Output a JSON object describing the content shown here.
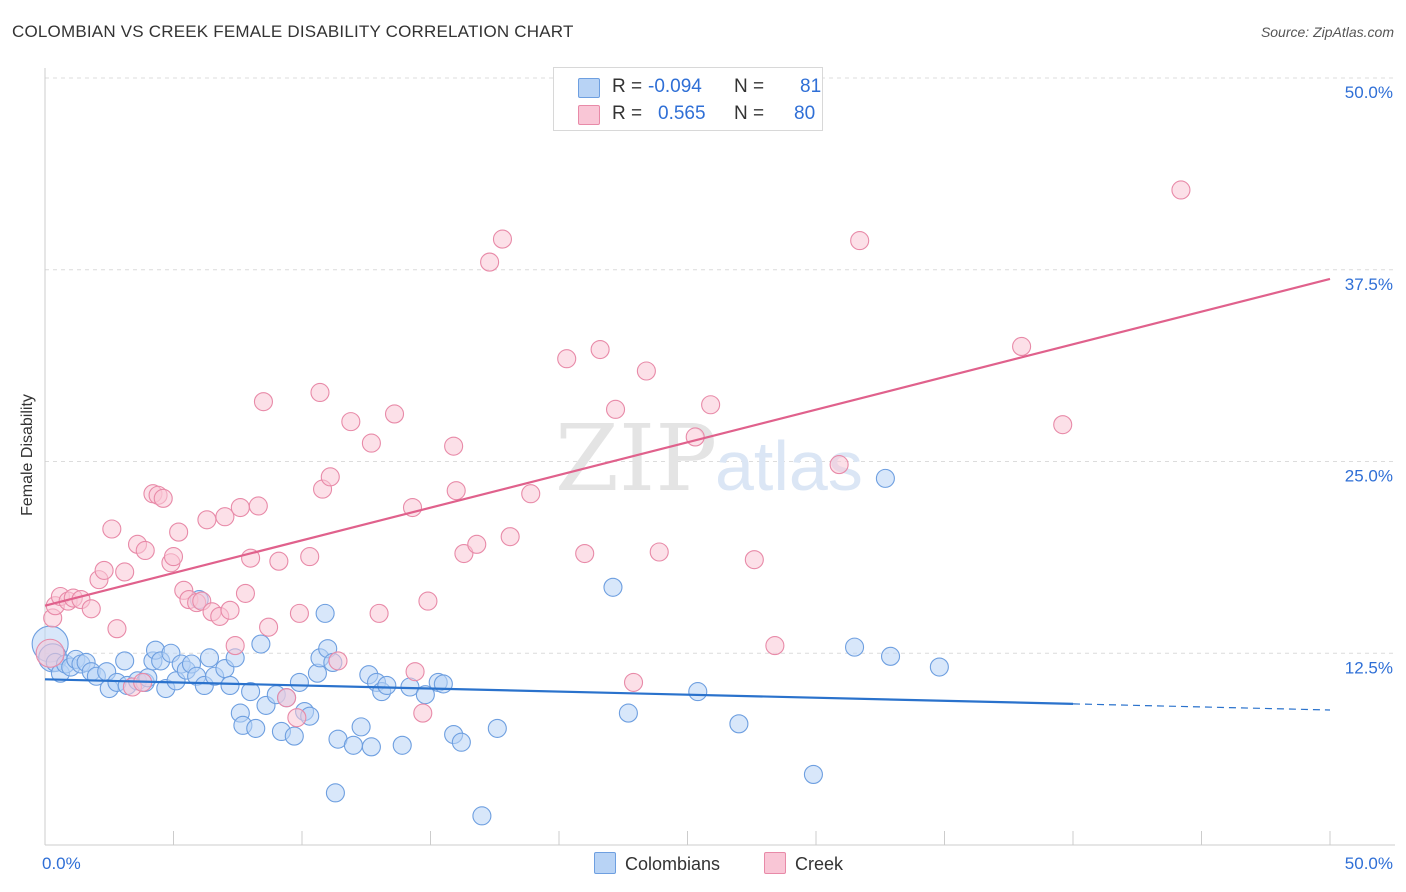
{
  "title": "COLOMBIAN VS CREEK FEMALE DISABILITY CORRELATION CHART",
  "source": "Source: ZipAtlas.com",
  "colors": {
    "blue_fill": "#b8d3f5",
    "blue_stroke": "#6e9fe0",
    "blue_line": "#2a72cc",
    "pink_fill": "#f9c6d6",
    "pink_stroke": "#e88aa8",
    "pink_line": "#e0618c",
    "axis_text": "#2f6fd6"
  },
  "legend": {
    "rows": [
      {
        "r_label": "R =",
        "r_value": "-0.094",
        "n_label": "N =",
        "n_value": "81"
      },
      {
        "r_label": "R =",
        "r_value": "0.565",
        "n_label": "N =",
        "n_value": "80"
      }
    ],
    "series": [
      "Colombians",
      "Creek"
    ]
  },
  "chart_data": {
    "type": "scatter",
    "title": "COLOMBIAN VS CREEK FEMALE DISABILITY CORRELATION CHART",
    "xlabel": "",
    "ylabel": "Female Disability",
    "xlim": [
      0,
      50
    ],
    "ylim": [
      0,
      50
    ],
    "x_tick_labels": [
      "0.0%",
      "50.0%"
    ],
    "y_tick_labels": [
      "12.5%",
      "25.0%",
      "37.5%",
      "50.0%"
    ],
    "y_ticks": [
      12.5,
      25.0,
      37.5,
      50.0
    ],
    "x_minor_ticks": [
      0,
      5,
      10,
      15,
      20,
      25,
      30,
      35,
      40,
      45,
      50
    ],
    "grid": true,
    "watermark": "ZIPatlas",
    "series": [
      {
        "name": "Colombians",
        "R": -0.094,
        "N": 81,
        "trend": {
          "x0": 0,
          "y0": 10.8,
          "x1": 40,
          "y1": 9.2,
          "dashed_to_x": 50,
          "dashed_to_y": 8.8
        },
        "points": [
          [
            0.2,
            13.1
          ],
          [
            0.3,
            12.2
          ],
          [
            0.4,
            11.9
          ],
          [
            0.6,
            11.2
          ],
          [
            0.8,
            11.8
          ],
          [
            1.0,
            11.6
          ],
          [
            1.2,
            12.1
          ],
          [
            1.4,
            11.8
          ],
          [
            1.6,
            11.9
          ],
          [
            1.8,
            11.3
          ],
          [
            2.0,
            11.0
          ],
          [
            2.4,
            11.3
          ],
          [
            2.5,
            10.2
          ],
          [
            2.8,
            10.6
          ],
          [
            3.1,
            12.0
          ],
          [
            3.2,
            10.4
          ],
          [
            3.6,
            10.7
          ],
          [
            3.9,
            10.6
          ],
          [
            4.0,
            10.9
          ],
          [
            4.2,
            12.0
          ],
          [
            4.3,
            12.7
          ],
          [
            4.5,
            12.0
          ],
          [
            4.7,
            10.2
          ],
          [
            4.9,
            12.5
          ],
          [
            5.1,
            10.7
          ],
          [
            5.3,
            11.8
          ],
          [
            5.5,
            11.4
          ],
          [
            5.7,
            11.8
          ],
          [
            5.9,
            11.0
          ],
          [
            6.0,
            16.0
          ],
          [
            6.2,
            10.4
          ],
          [
            6.4,
            12.2
          ],
          [
            6.6,
            11.0
          ],
          [
            7.0,
            11.5
          ],
          [
            7.2,
            10.4
          ],
          [
            7.4,
            12.2
          ],
          [
            7.6,
            8.6
          ],
          [
            7.7,
            7.8
          ],
          [
            8.0,
            10.0
          ],
          [
            8.2,
            7.6
          ],
          [
            8.4,
            13.1
          ],
          [
            8.6,
            9.1
          ],
          [
            9.0,
            9.8
          ],
          [
            9.2,
            7.4
          ],
          [
            9.4,
            9.6
          ],
          [
            9.7,
            7.1
          ],
          [
            9.9,
            10.6
          ],
          [
            10.1,
            8.7
          ],
          [
            10.3,
            8.4
          ],
          [
            10.6,
            11.2
          ],
          [
            10.7,
            12.2
          ],
          [
            10.9,
            15.1
          ],
          [
            11.0,
            12.8
          ],
          [
            11.2,
            11.9
          ],
          [
            11.4,
            6.9
          ],
          [
            11.3,
            3.4
          ],
          [
            12.0,
            6.5
          ],
          [
            12.3,
            7.7
          ],
          [
            12.6,
            11.1
          ],
          [
            12.7,
            6.4
          ],
          [
            12.9,
            10.6
          ],
          [
            13.1,
            10.0
          ],
          [
            13.3,
            10.4
          ],
          [
            13.9,
            6.5
          ],
          [
            14.2,
            10.3
          ],
          [
            14.8,
            9.8
          ],
          [
            15.3,
            10.6
          ],
          [
            15.5,
            10.5
          ],
          [
            15.9,
            7.2
          ],
          [
            16.2,
            6.7
          ],
          [
            17.0,
            1.9
          ],
          [
            17.6,
            7.6
          ],
          [
            22.1,
            16.8
          ],
          [
            22.7,
            8.6
          ],
          [
            25.4,
            10.0
          ],
          [
            27.0,
            7.9
          ],
          [
            29.9,
            4.6
          ],
          [
            31.5,
            12.9
          ],
          [
            32.7,
            23.9
          ],
          [
            32.9,
            12.3
          ],
          [
            34.8,
            11.6
          ]
        ],
        "radii": {
          "0": 18,
          "1": 14
        }
      },
      {
        "name": "Creek",
        "R": 0.565,
        "N": 80,
        "trend": {
          "x0": 0,
          "y0": 15.6,
          "x1": 50,
          "y1": 36.9
        },
        "points": [
          [
            0.2,
            12.5
          ],
          [
            0.3,
            14.8
          ],
          [
            0.4,
            15.6
          ],
          [
            0.6,
            16.2
          ],
          [
            0.9,
            15.9
          ],
          [
            1.1,
            16.1
          ],
          [
            1.4,
            16.0
          ],
          [
            1.8,
            15.4
          ],
          [
            2.1,
            17.3
          ],
          [
            2.3,
            17.9
          ],
          [
            2.6,
            20.6
          ],
          [
            2.8,
            14.1
          ],
          [
            3.1,
            17.8
          ],
          [
            3.4,
            10.3
          ],
          [
            3.6,
            19.6
          ],
          [
            3.8,
            10.6
          ],
          [
            3.9,
            19.2
          ],
          [
            4.2,
            22.9
          ],
          [
            4.4,
            22.8
          ],
          [
            4.6,
            22.6
          ],
          [
            4.9,
            18.4
          ],
          [
            5.0,
            18.8
          ],
          [
            5.2,
            20.4
          ],
          [
            5.4,
            16.6
          ],
          [
            5.6,
            16.0
          ],
          [
            5.9,
            15.8
          ],
          [
            6.1,
            15.9
          ],
          [
            6.3,
            21.2
          ],
          [
            6.5,
            15.2
          ],
          [
            6.8,
            14.9
          ],
          [
            7.0,
            21.4
          ],
          [
            7.2,
            15.3
          ],
          [
            7.4,
            13.0
          ],
          [
            7.6,
            22.0
          ],
          [
            7.8,
            16.4
          ],
          [
            8.0,
            18.7
          ],
          [
            8.3,
            22.1
          ],
          [
            8.5,
            28.9
          ],
          [
            8.7,
            14.2
          ],
          [
            9.1,
            18.5
          ],
          [
            9.4,
            9.6
          ],
          [
            9.8,
            8.3
          ],
          [
            9.9,
            15.1
          ],
          [
            10.3,
            18.8
          ],
          [
            10.7,
            29.5
          ],
          [
            10.8,
            23.2
          ],
          [
            11.1,
            24.0
          ],
          [
            11.4,
            12.0
          ],
          [
            11.9,
            27.6
          ],
          [
            12.7,
            26.2
          ],
          [
            13.0,
            15.1
          ],
          [
            13.6,
            28.1
          ],
          [
            14.3,
            22.0
          ],
          [
            14.4,
            11.3
          ],
          [
            14.7,
            8.6
          ],
          [
            14.9,
            15.9
          ],
          [
            15.9,
            26.0
          ],
          [
            16.0,
            23.1
          ],
          [
            16.3,
            19.0
          ],
          [
            16.8,
            19.6
          ],
          [
            17.3,
            38.0
          ],
          [
            17.8,
            39.5
          ],
          [
            18.1,
            20.1
          ],
          [
            18.9,
            22.9
          ],
          [
            20.3,
            31.7
          ],
          [
            21.0,
            19.0
          ],
          [
            21.6,
            32.3
          ],
          [
            22.2,
            28.4
          ],
          [
            22.9,
            10.6
          ],
          [
            23.4,
            30.9
          ],
          [
            23.9,
            19.1
          ],
          [
            25.3,
            26.6
          ],
          [
            25.9,
            28.7
          ],
          [
            27.6,
            18.6
          ],
          [
            28.4,
            13.0
          ],
          [
            30.9,
            24.8
          ],
          [
            31.7,
            39.4
          ],
          [
            38.0,
            32.5
          ],
          [
            39.6,
            27.4
          ],
          [
            44.2,
            42.7
          ]
        ],
        "radii": {
          "0": 14
        }
      }
    ]
  }
}
